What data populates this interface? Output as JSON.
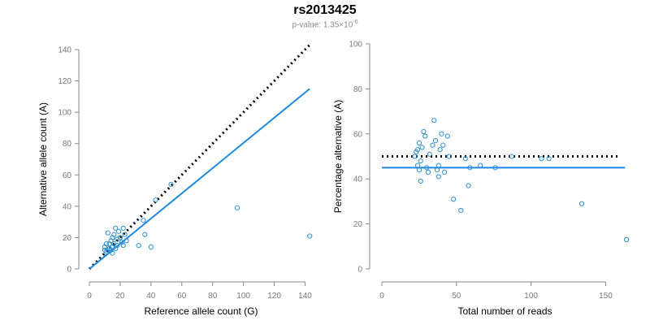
{
  "header": {
    "title": "rs2013425",
    "pvalue_prefix": "p-value: 1.35×10",
    "pvalue_exponent": "-6"
  },
  "colors": {
    "points": "#2b8fd6",
    "fit_line": "#1e88e5",
    "dotted_line": "#000000",
    "axis": "#888888"
  },
  "chart_data": [
    {
      "type": "scatter",
      "title": "",
      "xlabel": "Reference allele count (G)",
      "ylabel": "Alternative allele count (A)",
      "xlim": [
        0,
        145
      ],
      "ylim": [
        0,
        140
      ],
      "xticks": [
        0,
        20,
        40,
        60,
        80,
        100,
        120,
        140
      ],
      "yticks": [
        0,
        20,
        40,
        60,
        80,
        100,
        120,
        140
      ],
      "grid": false,
      "lines": [
        {
          "name": "",
          "style": "dotted",
          "x": [
            0,
            143
          ],
          "y": [
            0,
            143
          ]
        },
        {
          "name": "",
          "style": "solid",
          "x": [
            0,
            143
          ],
          "y": [
            0,
            115
          ]
        }
      ],
      "points": [
        {
          "x": 10,
          "y": 12
        },
        {
          "x": 10,
          "y": 14
        },
        {
          "x": 11,
          "y": 16
        },
        {
          "x": 11,
          "y": 11
        },
        {
          "x": 12,
          "y": 12
        },
        {
          "x": 12,
          "y": 23
        },
        {
          "x": 13,
          "y": 13
        },
        {
          "x": 13,
          "y": 16
        },
        {
          "x": 14,
          "y": 12
        },
        {
          "x": 14,
          "y": 18
        },
        {
          "x": 15,
          "y": 20
        },
        {
          "x": 15,
          "y": 14
        },
        {
          "x": 15,
          "y": 10
        },
        {
          "x": 16,
          "y": 22
        },
        {
          "x": 16,
          "y": 16
        },
        {
          "x": 17,
          "y": 26
        },
        {
          "x": 17,
          "y": 13
        },
        {
          "x": 18,
          "y": 15
        },
        {
          "x": 18,
          "y": 19
        },
        {
          "x": 19,
          "y": 24
        },
        {
          "x": 20,
          "y": 20
        },
        {
          "x": 21,
          "y": 17
        },
        {
          "x": 22,
          "y": 26
        },
        {
          "x": 22,
          "y": 15
        },
        {
          "x": 23,
          "y": 22
        },
        {
          "x": 24,
          "y": 18
        },
        {
          "x": 32,
          "y": 15
        },
        {
          "x": 35,
          "y": 31
        },
        {
          "x": 36,
          "y": 22
        },
        {
          "x": 40,
          "y": 14
        },
        {
          "x": 43,
          "y": 44
        },
        {
          "x": 53,
          "y": 54
        },
        {
          "x": 96,
          "y": 39
        },
        {
          "x": 143,
          "y": 21
        }
      ]
    },
    {
      "type": "scatter",
      "title": "",
      "xlabel": "Total number of reads",
      "ylabel": "Percentage alternative (A)",
      "xlim": [
        0,
        165
      ],
      "ylim": [
        0,
        100
      ],
      "xticks": [
        0,
        50,
        100,
        150
      ],
      "yticks": [
        0,
        20,
        40,
        60,
        80,
        100
      ],
      "grid": false,
      "lines": [
        {
          "name": "",
          "style": "dotted",
          "x": [
            0,
            160
          ],
          "y": [
            50,
            50
          ]
        },
        {
          "name": "",
          "style": "solid",
          "x": [
            0,
            163
          ],
          "y": [
            45,
            45
          ]
        }
      ],
      "points": [
        {
          "x": 22,
          "y": 50
        },
        {
          "x": 23,
          "y": 52
        },
        {
          "x": 24,
          "y": 46
        },
        {
          "x": 24,
          "y": 53
        },
        {
          "x": 25,
          "y": 56
        },
        {
          "x": 25,
          "y": 44
        },
        {
          "x": 26,
          "y": 39
        },
        {
          "x": 26,
          "y": 48
        },
        {
          "x": 27,
          "y": 54
        },
        {
          "x": 28,
          "y": 61
        },
        {
          "x": 29,
          "y": 59
        },
        {
          "x": 30,
          "y": 45
        },
        {
          "x": 31,
          "y": 43
        },
        {
          "x": 32,
          "y": 51
        },
        {
          "x": 34,
          "y": 55
        },
        {
          "x": 35,
          "y": 66
        },
        {
          "x": 36,
          "y": 57
        },
        {
          "x": 37,
          "y": 44
        },
        {
          "x": 38,
          "y": 46
        },
        {
          "x": 38,
          "y": 41
        },
        {
          "x": 39,
          "y": 53
        },
        {
          "x": 40,
          "y": 60
        },
        {
          "x": 41,
          "y": 55
        },
        {
          "x": 42,
          "y": 43
        },
        {
          "x": 44,
          "y": 59
        },
        {
          "x": 45,
          "y": 50
        },
        {
          "x": 48,
          "y": 31
        },
        {
          "x": 53,
          "y": 26
        },
        {
          "x": 56,
          "y": 49
        },
        {
          "x": 58,
          "y": 37
        },
        {
          "x": 59,
          "y": 45
        },
        {
          "x": 66,
          "y": 46
        },
        {
          "x": 76,
          "y": 45
        },
        {
          "x": 87,
          "y": 50
        },
        {
          "x": 107,
          "y": 49
        },
        {
          "x": 112,
          "y": 49
        },
        {
          "x": 134,
          "y": 29
        },
        {
          "x": 164,
          "y": 13
        }
      ]
    }
  ]
}
